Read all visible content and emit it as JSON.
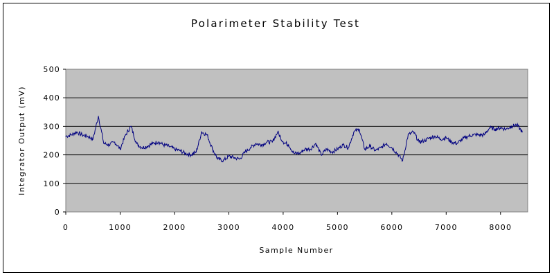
{
  "chart_data": {
    "type": "line",
    "title": "Polarimeter Stability Test",
    "xlabel": "Sample Number",
    "ylabel": "Integrator Output (mV)",
    "xlim": [
      0,
      8500
    ],
    "ylim": [
      0,
      500
    ],
    "x_ticks": [
      "0",
      "1000",
      "2000",
      "3000",
      "4000",
      "5000",
      "6000",
      "7000",
      "8000"
    ],
    "y_ticks": [
      "500",
      "400",
      "300",
      "200",
      "100",
      "0"
    ],
    "grid": true,
    "legend": "none",
    "plot_background": "#c0c0c0",
    "line_color": "#000080",
    "x": [
      0,
      100,
      200,
      300,
      400,
      500,
      600,
      700,
      800,
      900,
      1000,
      1100,
      1200,
      1300,
      1400,
      1500,
      1600,
      1700,
      1800,
      1900,
      2000,
      2100,
      2200,
      2300,
      2400,
      2500,
      2600,
      2700,
      2800,
      2900,
      3000,
      3100,
      3200,
      3300,
      3400,
      3500,
      3600,
      3700,
      3800,
      3900,
      4000,
      4100,
      4200,
      4300,
      4400,
      4500,
      4600,
      4700,
      4800,
      4900,
      5000,
      5100,
      5200,
      5300,
      5400,
      5500,
      5600,
      5700,
      5800,
      5900,
      6000,
      6100,
      6200,
      6300,
      6400,
      6500,
      6600,
      6700,
      6800,
      6900,
      7000,
      7100,
      7200,
      7300,
      7400,
      7500,
      7600,
      7700,
      7800,
      7900,
      8000,
      8100,
      8200,
      8300,
      8400
    ],
    "y": [
      265,
      270,
      280,
      270,
      265,
      255,
      335,
      240,
      235,
      245,
      220,
      270,
      300,
      240,
      225,
      230,
      240,
      245,
      235,
      230,
      220,
      215,
      205,
      200,
      210,
      280,
      270,
      220,
      185,
      180,
      195,
      190,
      185,
      210,
      225,
      240,
      235,
      245,
      245,
      280,
      245,
      235,
      205,
      205,
      220,
      220,
      240,
      200,
      220,
      210,
      220,
      235,
      225,
      280,
      290,
      220,
      230,
      215,
      225,
      240,
      225,
      205,
      180,
      270,
      280,
      245,
      250,
      260,
      265,
      255,
      260,
      245,
      240,
      255,
      265,
      270,
      270,
      270,
      295,
      290,
      295,
      290,
      300,
      305,
      280
    ]
  }
}
